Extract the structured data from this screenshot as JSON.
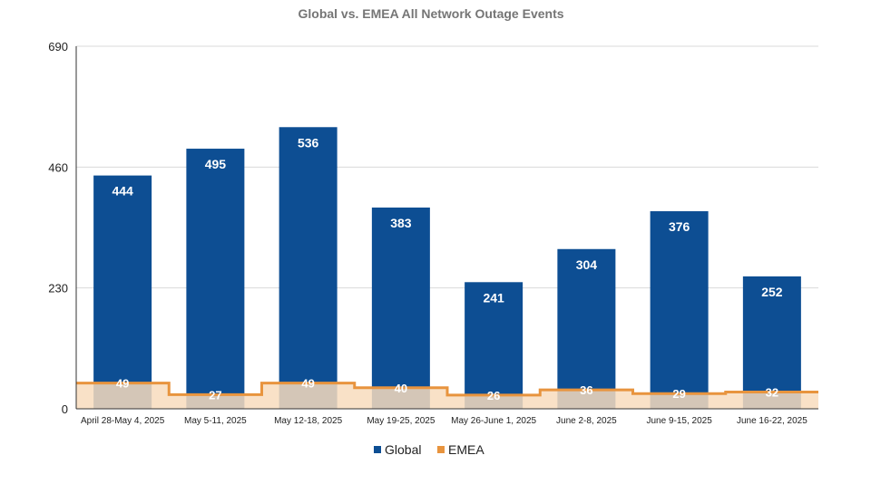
{
  "chart_data": {
    "type": "bar",
    "title": "Global vs. EMEA All Network Outage Events",
    "categories": [
      "April 28-May 4, 2025",
      "May 5-11, 2025",
      "May 12-18, 2025",
      "May 19-25, 2025",
      "May 26-June 1, 2025",
      "June 2-8, 2025",
      "June 9-15, 2025",
      "June 16-22, 2025"
    ],
    "series": [
      {
        "name": "Global",
        "kind": "bar",
        "color": "#0d4e93",
        "values": [
          444,
          495,
          536,
          383,
          241,
          304,
          376,
          252
        ]
      },
      {
        "name": "EMEA",
        "kind": "stepped-area",
        "color": "#e8943e",
        "fill": "#f8dcbd",
        "values": [
          49,
          27,
          49,
          40,
          26,
          36,
          29,
          32
        ]
      }
    ],
    "yticks": [
      0,
      230,
      460,
      690
    ],
    "ylim": [
      0,
      690
    ],
    "grid": true,
    "legend_position": "bottom"
  }
}
